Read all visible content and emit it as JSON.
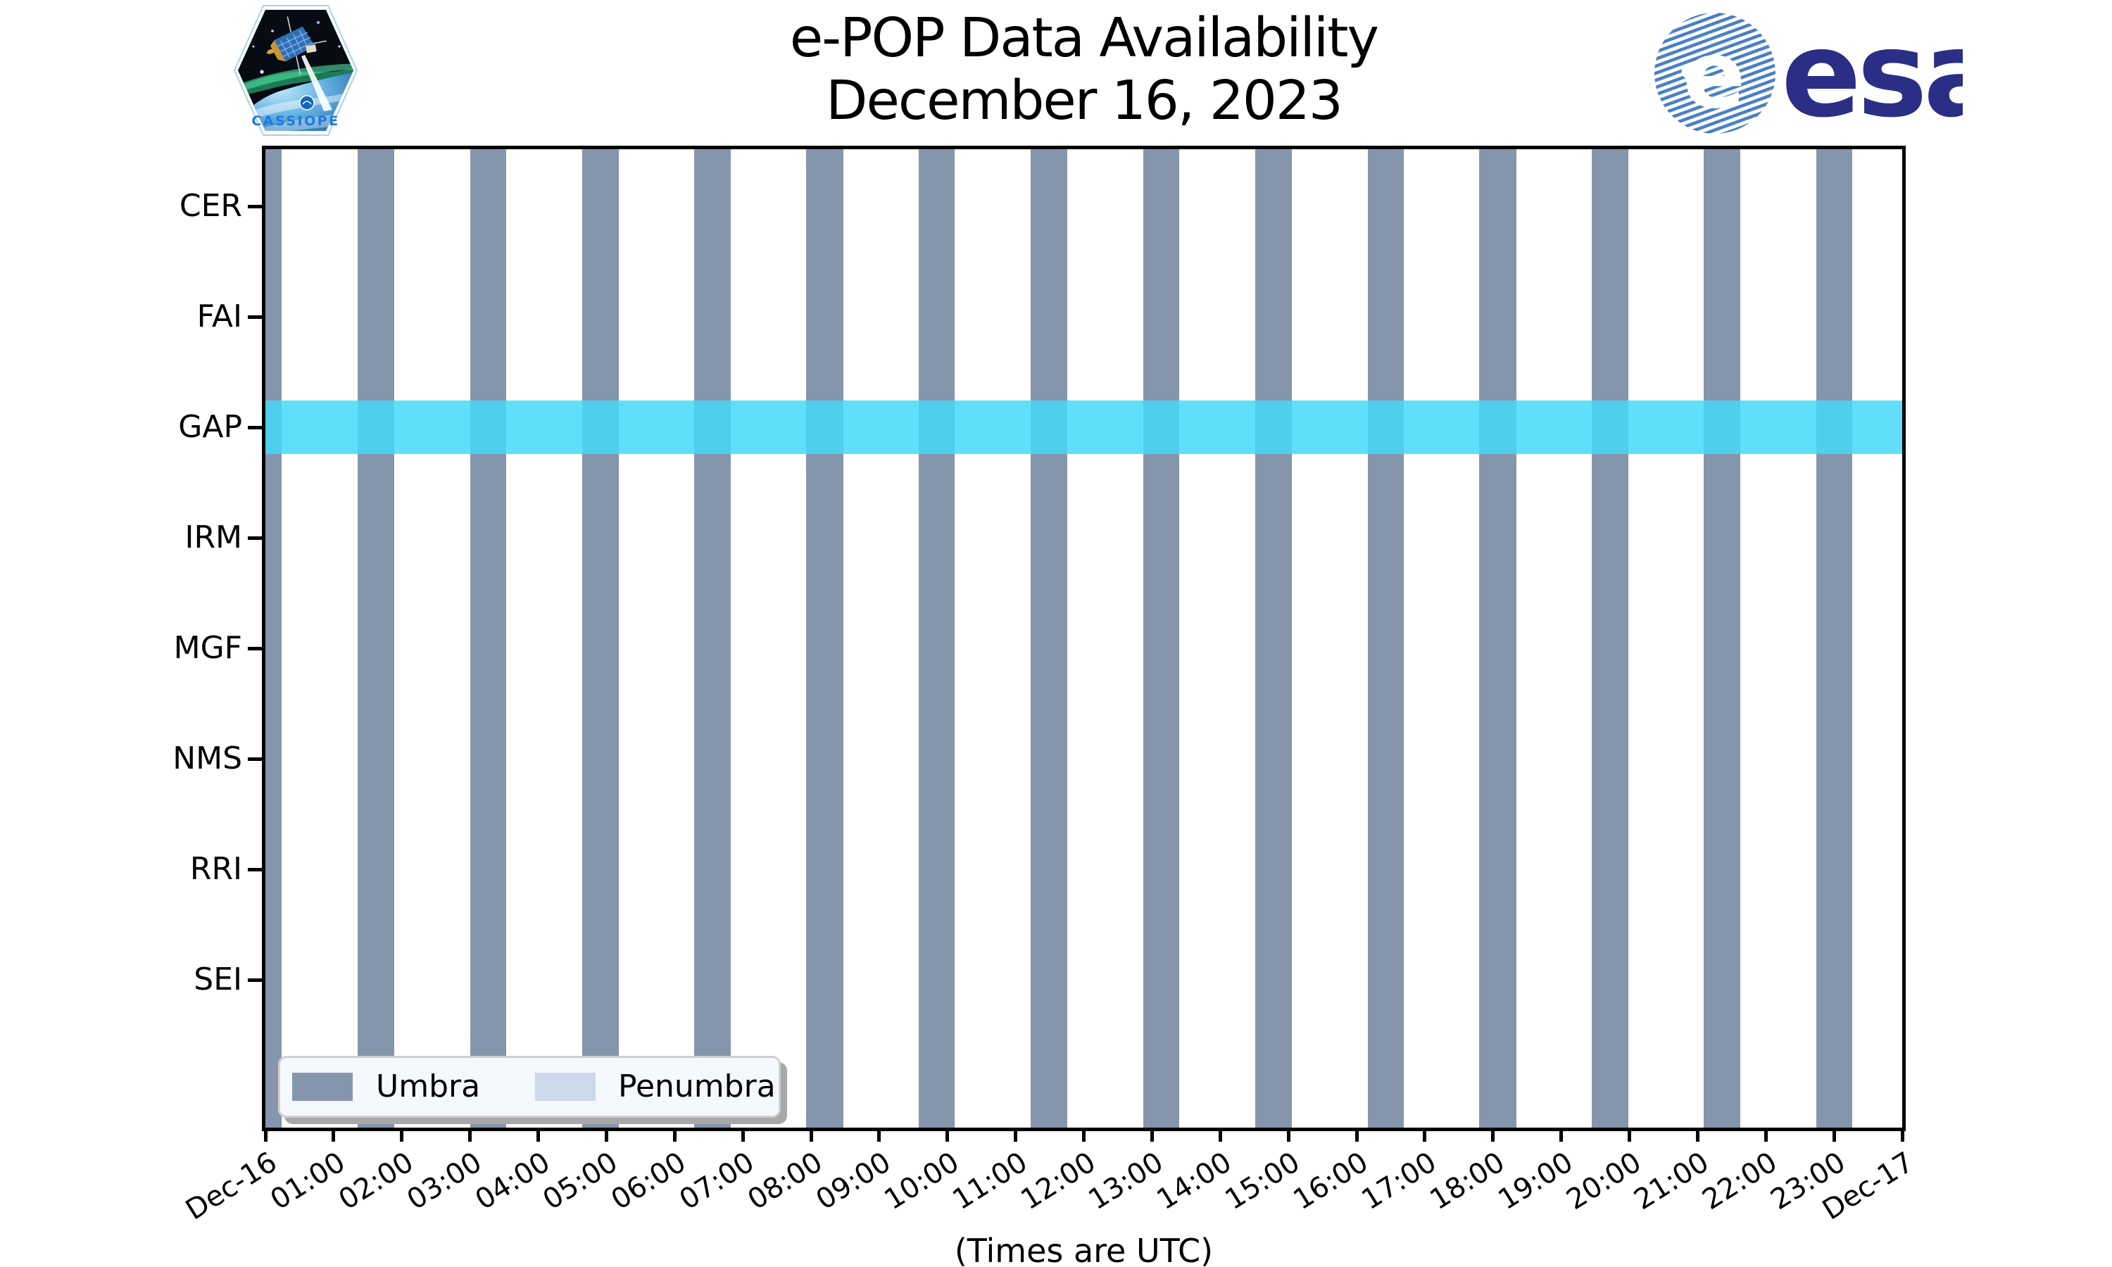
{
  "figure": {
    "title_line1": "e-POP Data Availability",
    "title_line2": "December 16, 2023",
    "footnote": "(Times are UTC)"
  },
  "logos": {
    "cassiope": {
      "label": "CASSIOPE"
    },
    "esa": {
      "wordmark": "esa"
    }
  },
  "chart_data": {
    "type": "availability-timeline",
    "title": "e-POP Data Availability",
    "subtitle": "December 16, 2023",
    "x_axis": {
      "unit": "hours (UTC)",
      "range_hours": [
        0,
        24
      ],
      "tick_labels": [
        "Dec-16",
        "01:00",
        "02:00",
        "03:00",
        "04:00",
        "05:00",
        "06:00",
        "07:00",
        "08:00",
        "09:00",
        "10:00",
        "11:00",
        "12:00",
        "13:00",
        "14:00",
        "15:00",
        "16:00",
        "17:00",
        "18:00",
        "19:00",
        "20:00",
        "21:00",
        "22:00",
        "23:00",
        "Dec-17"
      ],
      "label_rotation_deg": 32
    },
    "y_axis": {
      "instruments": [
        "CER",
        "FAI",
        "GAP",
        "IRM",
        "MGF",
        "NMS",
        "RRI",
        "SEI"
      ]
    },
    "availability": [
      {
        "instrument": "GAP",
        "intervals_hours": [
          [
            0,
            24
          ]
        ]
      }
    ],
    "umbra_intervals_hours": [
      [
        -0.29,
        0.24
      ],
      [
        1.35,
        1.89
      ],
      [
        3.0,
        3.53
      ],
      [
        4.64,
        5.18
      ],
      [
        6.29,
        6.82
      ],
      [
        7.93,
        8.47
      ],
      [
        9.58,
        10.11
      ],
      [
        11.22,
        11.76
      ],
      [
        12.87,
        13.4
      ],
      [
        14.51,
        15.05
      ],
      [
        16.16,
        16.69
      ],
      [
        17.8,
        18.34
      ],
      [
        19.45,
        19.98
      ],
      [
        21.09,
        21.63
      ],
      [
        22.74,
        23.27
      ]
    ],
    "penumbra_intervals_hours": [],
    "legend": {
      "position": "lower left",
      "entries": [
        {
          "label": "Umbra",
          "color": "#8596AC"
        },
        {
          "label": "Penumbra",
          "color": "#CBDAEA"
        }
      ]
    },
    "colors": {
      "umbra": "#8596AC",
      "penumbra": "#CBDAEA",
      "availability_band": "#61DEFA",
      "availability_band_over_umbra": "#50CEEE",
      "axis": "#000000"
    },
    "grid": false
  }
}
